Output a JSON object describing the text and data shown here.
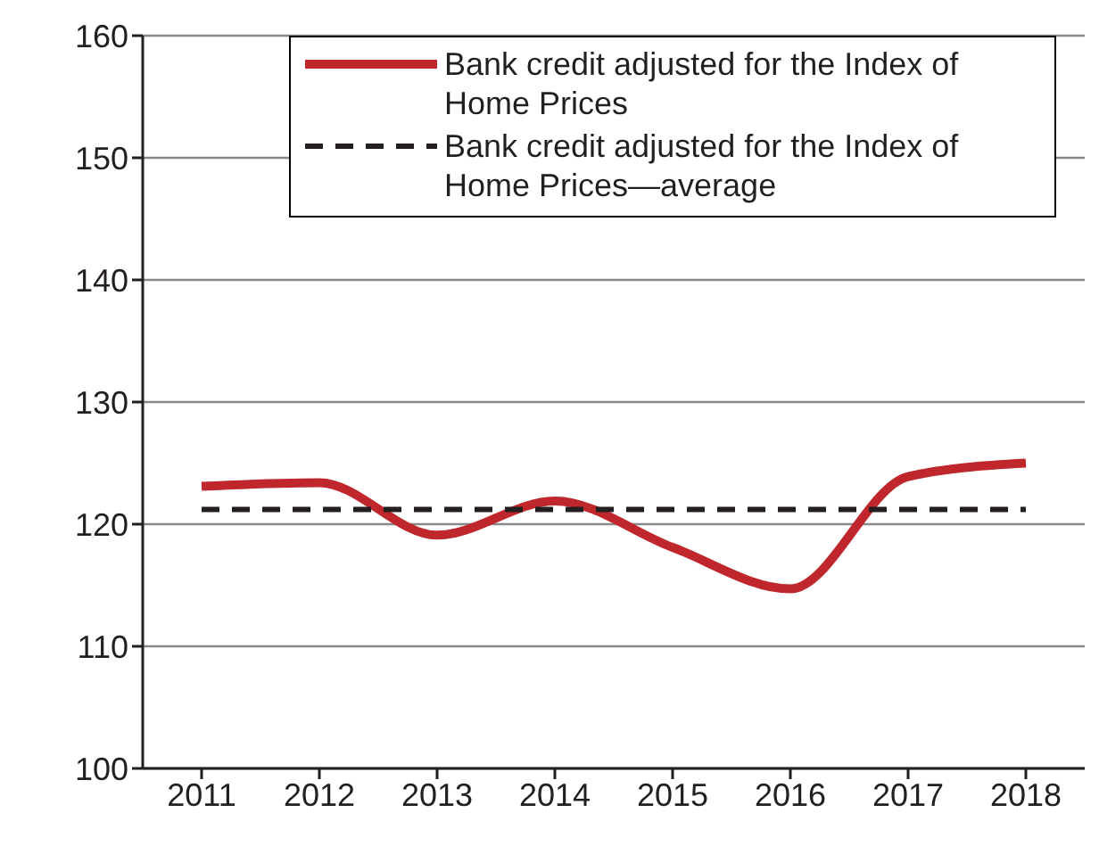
{
  "chart_data": {
    "type": "line",
    "categories": [
      "2011",
      "2012",
      "2013",
      "2014",
      "2015",
      "2016",
      "2017",
      "2018"
    ],
    "series": [
      {
        "name": "Bank credit adjusted for the Index of Home Prices",
        "color": "#c0272d",
        "values": [
          123.1,
          123.4,
          119.1,
          121.9,
          118.1,
          114.7,
          123.9,
          125.0
        ],
        "line_style": "solid"
      },
      {
        "name": "Bank credit adjusted for the Index of Home Prices—average",
        "color": "#231f20",
        "values": [
          121.2,
          121.2,
          121.2,
          121.2,
          121.2,
          121.2,
          121.2,
          121.2
        ],
        "line_style": "dashed"
      }
    ],
    "ylim": [
      100,
      160
    ],
    "yticks": [
      100,
      110,
      120,
      130,
      140,
      150,
      160
    ],
    "grid": "y",
    "legend": "top right",
    "marker": "none"
  }
}
